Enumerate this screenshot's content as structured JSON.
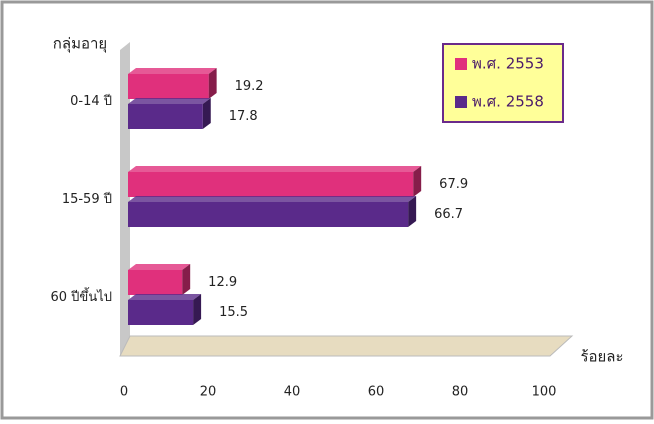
{
  "chart_data": {
    "type": "bar3d_horizontal",
    "y_label": "กลุ่มอายุ",
    "x_label": "ร้อยละ",
    "categories": [
      "0-14 ปี",
      "15-59 ปี",
      "60 ปีขึ้นไป"
    ],
    "series": [
      {
        "name": "พ.ศ. 2553",
        "color": "#e0307c",
        "values": [
          19.2,
          67.9,
          12.9
        ]
      },
      {
        "name": "พ.ศ. 2558",
        "color": "#5a2a8a",
        "values": [
          17.8,
          66.7,
          15.5
        ]
      }
    ],
    "xlim": [
      0,
      100
    ],
    "xticks": [
      0,
      20,
      40,
      60,
      80,
      100
    ],
    "legend": "top-right"
  }
}
